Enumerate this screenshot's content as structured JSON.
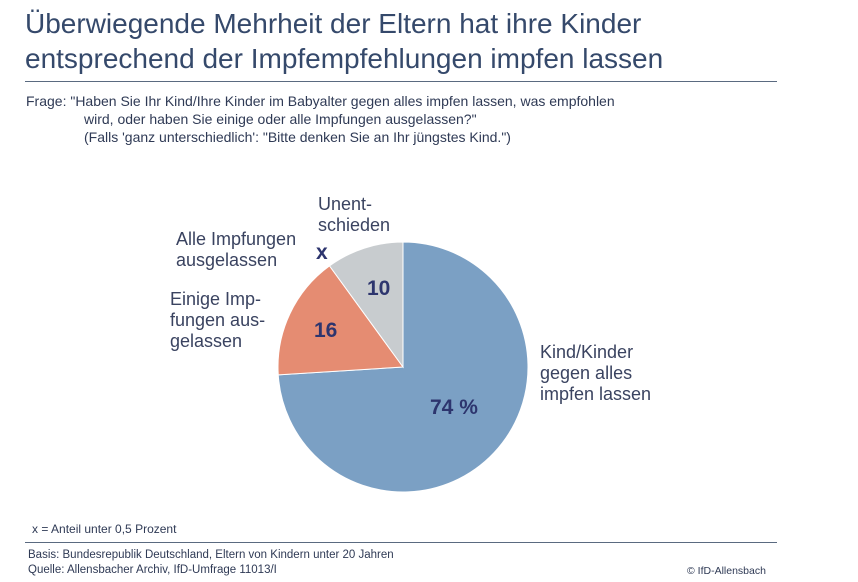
{
  "title_line1": "Überwiegende Mehrheit der Eltern hat ihre Kinder",
  "title_line2": "entsprechend der Impfempfehlungen impfen lassen",
  "question": {
    "line1": "Frage: \"Haben Sie Ihr Kind/Ihre Kinder im Babyalter gegen alles impfen lassen, was empfohlen",
    "line2": "wird, oder haben Sie einige oder alle Impfungen ausgelassen?\"",
    "line3": "(Falls 'ganz unterschiedlich': \"Bitte denken Sie an Ihr jüngstes Kind.\")"
  },
  "chart_data": {
    "type": "pie",
    "title": "Überwiegende Mehrheit der Eltern hat ihre Kinder entsprechend der Impfempfehlungen impfen lassen",
    "unit": "Prozent",
    "slices": [
      {
        "name": "Kind/Kinder gegen alles impfen lassen",
        "label_lines": [
          "Kind/Kinder",
          "gegen alles",
          "impfen lassen"
        ],
        "value": 74,
        "value_text": "74 %",
        "color": "#7ba0c4"
      },
      {
        "name": "Einige Impfungen ausgelassen",
        "label_lines": [
          "Einige Imp-",
          "fungen aus-",
          "gelassen"
        ],
        "value": 16,
        "value_text": "16",
        "color": "#e58c72"
      },
      {
        "name": "Alle Impfungen ausgelassen",
        "label_lines": [
          "Alle Impfungen",
          "ausgelassen"
        ],
        "value": 0,
        "value_text": "x",
        "color": "#2d356e"
      },
      {
        "name": "Unentschieden",
        "label_lines": [
          "Unent-",
          "schieden"
        ],
        "value": 10,
        "value_text": "10",
        "color": "#c8cccf"
      }
    ]
  },
  "footnote": "x = Anteil unter 0,5 Prozent",
  "source": {
    "basis": "Basis: Bundesrepublik Deutschland, Eltern von Kindern unter 20 Jahren",
    "quelle": "Quelle: Allensbacher Archiv, IfD-Umfrage 11013/I"
  },
  "copyright": "© IfD-Allensbach"
}
